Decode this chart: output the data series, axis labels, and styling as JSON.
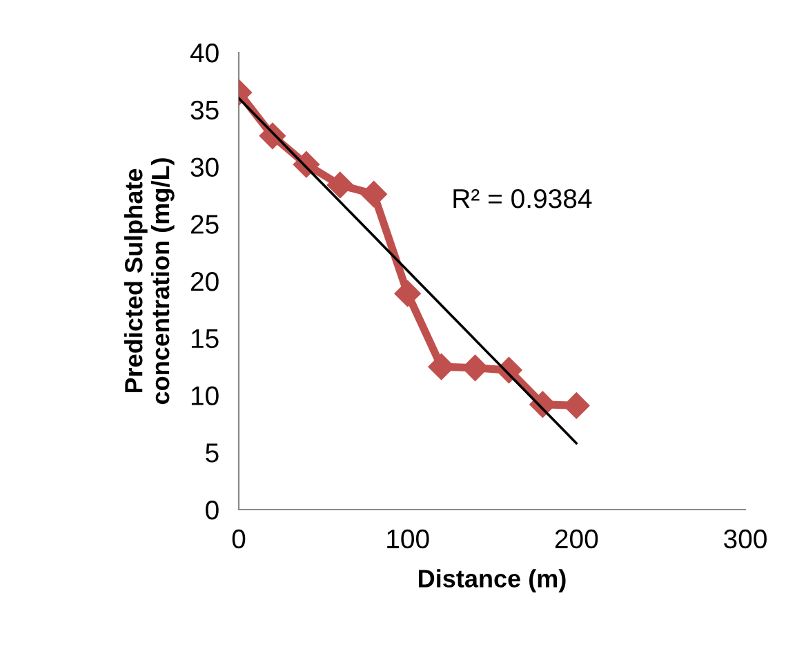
{
  "chart_data": {
    "type": "line",
    "xlabel": "Distance (m)",
    "ylabel": "Predicted Sulphate\nconcentration (mg/L)",
    "xlim": [
      0,
      300
    ],
    "xticks": [
      0,
      100,
      200,
      300
    ],
    "ylim": [
      0,
      40
    ],
    "yticks": [
      0,
      5,
      10,
      15,
      20,
      25,
      30,
      35,
      40
    ],
    "grid": false,
    "legend": false,
    "annotations": [
      "R² = 0.9384"
    ],
    "series": [
      {
        "color": "#c0504d",
        "marker": "diamond",
        "x": [
          0,
          20,
          40,
          60,
          80,
          100,
          120,
          140,
          160,
          180,
          200
        ],
        "values": [
          36.5,
          32.7,
          30.2,
          28.4,
          27.6,
          18.9,
          12.5,
          12.4,
          12.2,
          9.2,
          9.1
        ]
      },
      {
        "color": "#000000",
        "marker": "none",
        "x": [
          0,
          200
        ],
        "values": [
          36,
          5.8
        ]
      }
    ]
  }
}
